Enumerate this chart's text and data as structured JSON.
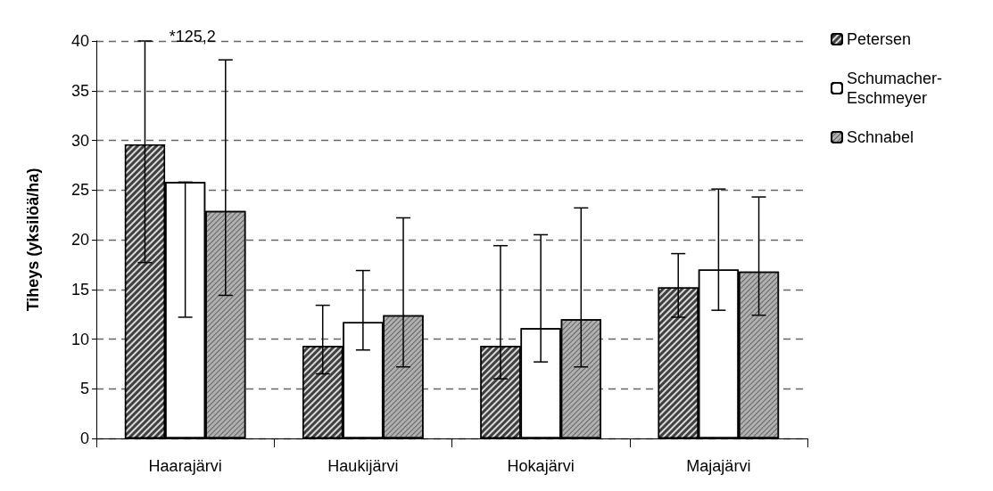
{
  "chart_data": {
    "type": "bar",
    "ylabel": "Tiheys (yksilöä/ha)",
    "categories": [
      "Haarajärvi",
      "Haukijärvi",
      "Hokajärvi",
      "Majajärvi"
    ],
    "series": [
      {
        "name": "Petersen",
        "color": "#404040",
        "values": [
          29.6,
          9.3,
          9.3,
          15.2
        ],
        "errors": [
          [
            17.7,
            40
          ],
          [
            6.5,
            13.4
          ],
          [
            6.0,
            19.4
          ],
          [
            12.2,
            18.6
          ]
        ]
      },
      {
        "name": "Schumacher-Eschmeyer",
        "color": "#ffffff",
        "values": [
          25.8,
          11.7,
          11.1,
          17.0
        ],
        "errors": [
          [
            12.2,
            25.8
          ],
          [
            8.9,
            16.9
          ],
          [
            7.7,
            20.5
          ],
          [
            12.9,
            25.1
          ]
        ]
      },
      {
        "name": "Schnabel",
        "color": "#b0b0b0",
        "values": [
          22.9,
          12.4,
          12.0,
          16.8
        ],
        "errors": [
          [
            14.4,
            38.1
          ],
          [
            7.2,
            22.2
          ],
          [
            7.2,
            23.2
          ],
          [
            12.4,
            24.3
          ]
        ]
      }
    ],
    "ylim": [
      0,
      40
    ],
    "yticks": [
      0,
      5,
      10,
      15,
      20,
      25,
      30,
      35,
      40
    ],
    "grid": "y",
    "legend": "top right",
    "annotations": [
      "*125,2"
    ]
  }
}
